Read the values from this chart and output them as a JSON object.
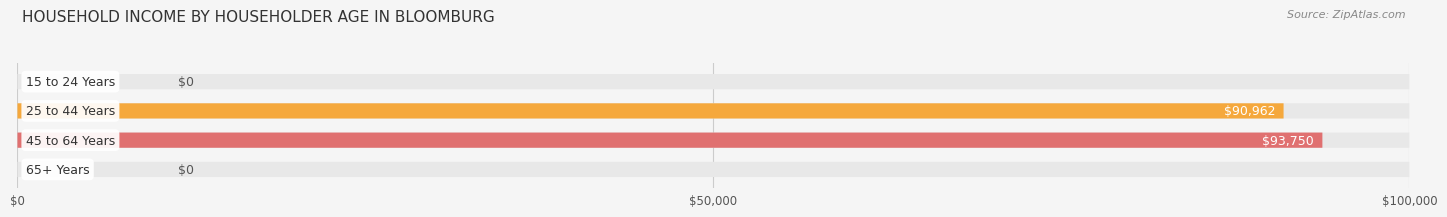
{
  "title": "HOUSEHOLD INCOME BY HOUSEHOLDER AGE IN BLOOMBURG",
  "source": "Source: ZipAtlas.com",
  "categories": [
    "15 to 24 Years",
    "25 to 44 Years",
    "45 to 64 Years",
    "65+ Years"
  ],
  "values": [
    0,
    90962,
    93750,
    0
  ],
  "bar_colors": [
    "#f0878a",
    "#f5a83c",
    "#e07070",
    "#a8c4e0"
  ],
  "value_labels": [
    "$0",
    "$90,962",
    "$93,750",
    "$0"
  ],
  "xlim": [
    0,
    100000
  ],
  "xtick_values": [
    0,
    50000,
    100000
  ],
  "xtick_labels": [
    "$0",
    "$50,000",
    "$100,000"
  ],
  "background_color": "#f5f5f5",
  "bar_bg_color": "#e8e8e8",
  "title_fontsize": 11,
  "source_fontsize": 8,
  "label_fontsize": 9,
  "value_fontsize": 9
}
